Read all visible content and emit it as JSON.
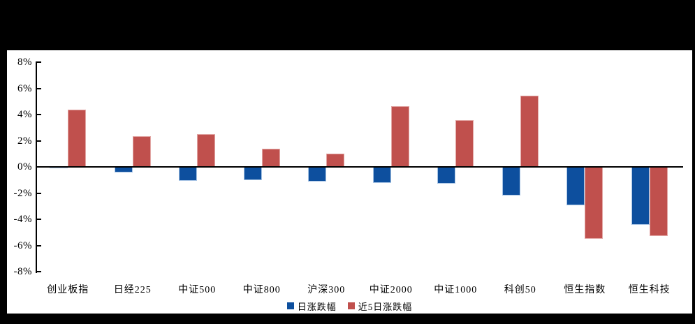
{
  "frame": {
    "background": "#000000",
    "panel_background": "#ffffff"
  },
  "chart_data": {
    "type": "bar",
    "title": "",
    "xlabel": "",
    "ylabel": "",
    "categories": [
      "创业板指",
      "日经225",
      "中证500",
      "中证800",
      "沪深300",
      "中证2000",
      "中证1000",
      "科创50",
      "恒生指数",
      "恒生科技"
    ],
    "series": [
      {
        "name": "日涨跌幅",
        "key": "daily-change",
        "color": "#0D4F9E",
        "border_color": "#A8C4E4",
        "values": [
          -0.1,
          -0.4,
          -1.05,
          -1.0,
          -1.1,
          -1.2,
          -1.3,
          -2.2,
          -2.95,
          -4.45
        ]
      },
      {
        "name": "近5日涨跌幅",
        "key": "five-day-change",
        "color": "#C0504D",
        "border_color": "#E2A7A5",
        "values": [
          4.4,
          2.35,
          2.5,
          1.4,
          1.0,
          4.65,
          3.6,
          5.45,
          -5.5,
          -5.3
        ]
      }
    ],
    "ylim": [
      -8,
      8
    ],
    "y_tick_step": 2,
    "y_tick_labels": [
      "8%",
      "6%",
      "4%",
      "2%",
      "0%",
      "-2%",
      "-4%",
      "-6%",
      "-8%"
    ],
    "grid": false,
    "legend_position": "bottom",
    "axis_color": "#000000"
  }
}
